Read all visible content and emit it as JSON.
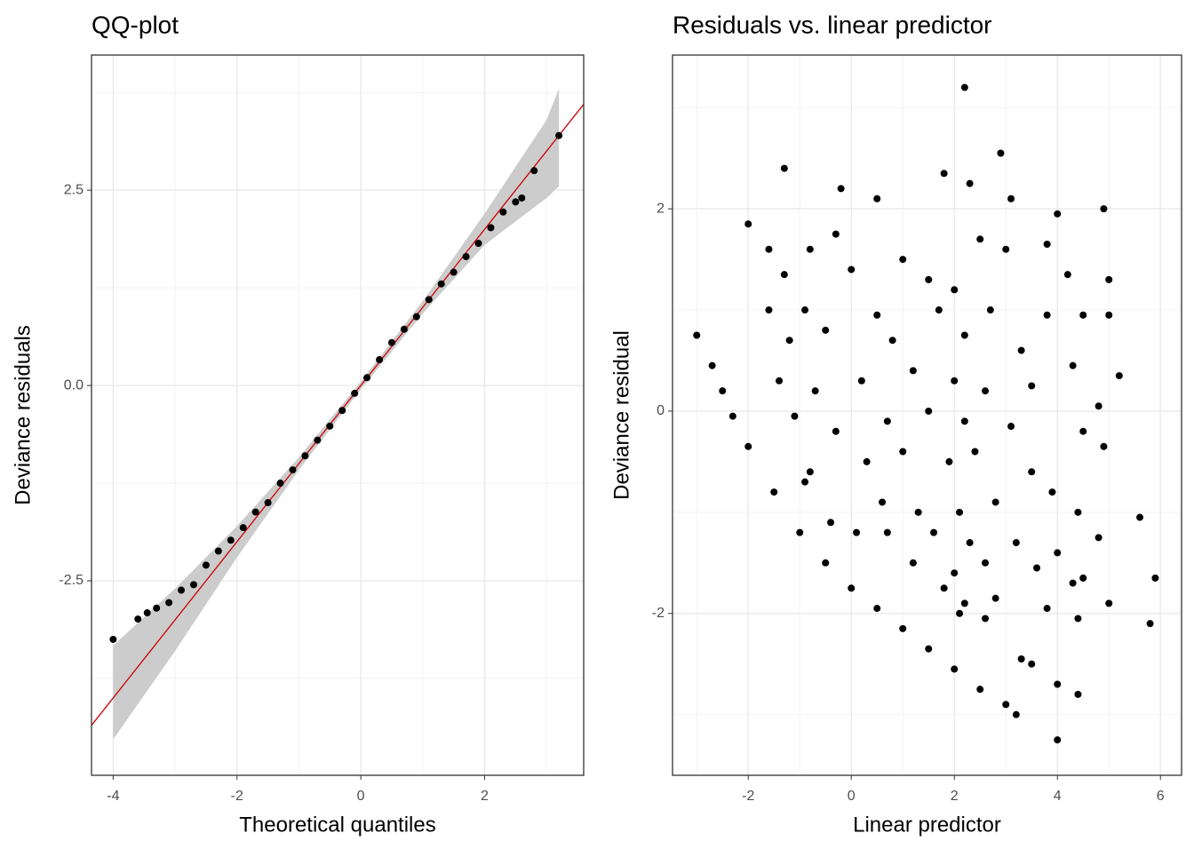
{
  "chart_data": [
    {
      "type": "qq",
      "title": "QQ-plot",
      "x_label": "Theoretical quantiles",
      "y_label": "Deviance residuals",
      "xlim": [
        -4.35,
        3.6
      ],
      "ylim": [
        -4.99,
        4.23
      ],
      "xticks": [
        -4,
        -2,
        0,
        2
      ],
      "yticks": [
        -2.5,
        {
          "value": 0,
          "label": "0.0"
        },
        2.5
      ],
      "xminor": [
        -3,
        -1,
        1,
        3
      ],
      "yminor": [
        -3.75,
        -1.25,
        1.25,
        3.75
      ],
      "grid": true,
      "color": "#000000",
      "x": [
        -4,
        -3.6,
        -3.45,
        -3.3,
        -3.1,
        -2.9,
        -2.7,
        -2.5,
        -2.3,
        -2.1,
        -1.9,
        -1.7,
        -1.5,
        -1.3,
        -1.1,
        -0.9,
        -0.7,
        -0.5,
        -0.3,
        -0.1,
        0.1,
        0.3,
        0.5,
        0.7,
        0.9,
        1.1,
        1.3,
        1.5,
        1.7,
        1.9,
        2.1,
        2.3,
        2.5,
        2.6,
        2.8,
        3.2
      ],
      "y": [
        -3.25,
        -2.99,
        -2.91,
        -2.85,
        -2.78,
        -2.62,
        -2.55,
        -2.3,
        -2.12,
        -1.98,
        -1.82,
        -1.62,
        -1.5,
        -1.25,
        -1.08,
        -0.9,
        -0.7,
        -0.52,
        -0.32,
        -0.1,
        0.1,
        0.33,
        0.55,
        0.72,
        0.88,
        1.1,
        1.3,
        1.45,
        1.65,
        1.82,
        2.02,
        2.22,
        2.35,
        2.4,
        2.75,
        3.2
      ],
      "reference_line": {
        "slope": 1,
        "intercept": 0,
        "color": "#cc0000"
      },
      "band": {
        "color": "#cccccc",
        "x": [
          -4,
          -3,
          -2,
          -1,
          0,
          1,
          2,
          3,
          3.2
        ],
        "lower": [
          -4.53,
          -3.4,
          -2.2,
          -1.08,
          -0.05,
          0.92,
          1.8,
          2.4,
          2.55
        ],
        "upper": [
          -3.33,
          -2.6,
          -1.8,
          -0.92,
          0.05,
          1.08,
          2.2,
          3.4,
          3.8
        ]
      }
    },
    {
      "type": "scatter",
      "title": "Residuals vs. linear predictor",
      "x_label": "Linear predictor",
      "y_label": "Deviance residual",
      "xlim": [
        -3.47,
        6.41
      ],
      "ylim": [
        -3.6,
        3.52
      ],
      "xticks": [
        -2,
        0,
        2,
        4,
        6
      ],
      "yticks": [
        -2,
        0,
        2
      ],
      "xminor": [
        -3,
        -1,
        1,
        3,
        5
      ],
      "yminor": [
        -3,
        -1,
        1,
        3
      ],
      "grid": true,
      "color": "#000000",
      "x": [
        -3,
        -2.7,
        -2.5,
        -2.3,
        -2,
        -1.5,
        -1,
        -0.5,
        0,
        0.5,
        1,
        1.5,
        2,
        2.5,
        3,
        3.2,
        2.2,
        1.8,
        2.3,
        2.9,
        -1.3,
        -0.2,
        0.5,
        -2,
        4.9,
        3.1,
        4,
        3,
        3.8,
        -1.6,
        -0.8,
        -0.3,
        1,
        2.5,
        4.2,
        5,
        -1.3,
        0,
        1.5,
        2,
        -1.6,
        -0.9,
        0.5,
        1.7,
        2.7,
        3.8,
        4.5,
        5,
        -1.2,
        -0.5,
        0.8,
        2.2,
        3.3,
        4.3,
        5.2,
        -1.4,
        -0.7,
        0.2,
        1.2,
        2,
        2.6,
        3.5,
        4.8,
        -1.1,
        -0.3,
        0.7,
        1.5,
        2.2,
        3.1,
        4.5,
        -0.8,
        0.3,
        1,
        1.9,
        2.4,
        3.5,
        4.9,
        -0.9,
        0.6,
        1.3,
        2.1,
        2.8,
        3.9,
        4.4,
        -0.4,
        0.7,
        1.6,
        2.3,
        3.2,
        4,
        4.8,
        0.1,
        1.2,
        2,
        2.6,
        3.6,
        4.3,
        5.6,
        1.8,
        2.2,
        2.8,
        4.5,
        5.9,
        5,
        2.1,
        2.6,
        3.8,
        4.4,
        5.8,
        3.3,
        3.5,
        4.4,
        4,
        4
      ],
      "y": [
        0.75,
        0.45,
        0.2,
        -0.05,
        -0.35,
        -0.8,
        -1.2,
        -1.5,
        -1.75,
        -1.95,
        -2.15,
        -2.35,
        -2.55,
        -2.75,
        -2.9,
        -3,
        3.2,
        2.35,
        2.25,
        2.55,
        2.4,
        2.2,
        2.1,
        1.85,
        2,
        2.1,
        1.95,
        1.6,
        1.65,
        1.6,
        1.6,
        1.75,
        1.5,
        1.7,
        1.35,
        1.3,
        1.35,
        1.4,
        1.3,
        1.2,
        1,
        1,
        0.95,
        1,
        1,
        0.95,
        0.95,
        0.95,
        0.7,
        0.8,
        0.7,
        0.75,
        0.6,
        0.45,
        0.35,
        0.3,
        0.2,
        0.3,
        0.4,
        0.3,
        0.2,
        0.25,
        0.05,
        -0.05,
        -0.2,
        -0.1,
        0,
        -0.1,
        -0.15,
        -0.2,
        -0.6,
        -0.5,
        -0.4,
        -0.5,
        -0.4,
        -0.6,
        -0.35,
        -0.7,
        -0.9,
        -1,
        -1,
        -0.9,
        -0.8,
        -1,
        -1.1,
        -1.2,
        -1.2,
        -1.3,
        -1.3,
        -1.4,
        -1.25,
        -1.2,
        -1.5,
        -1.6,
        -1.5,
        -1.55,
        -1.7,
        -1.05,
        -1.75,
        -1.9,
        -1.85,
        -1.65,
        -1.65,
        -1.9,
        -2,
        -2.05,
        -1.95,
        -2.05,
        -2.1,
        -2.45,
        -2.5,
        -2.8,
        -2.7,
        -3.25
      ]
    }
  ]
}
